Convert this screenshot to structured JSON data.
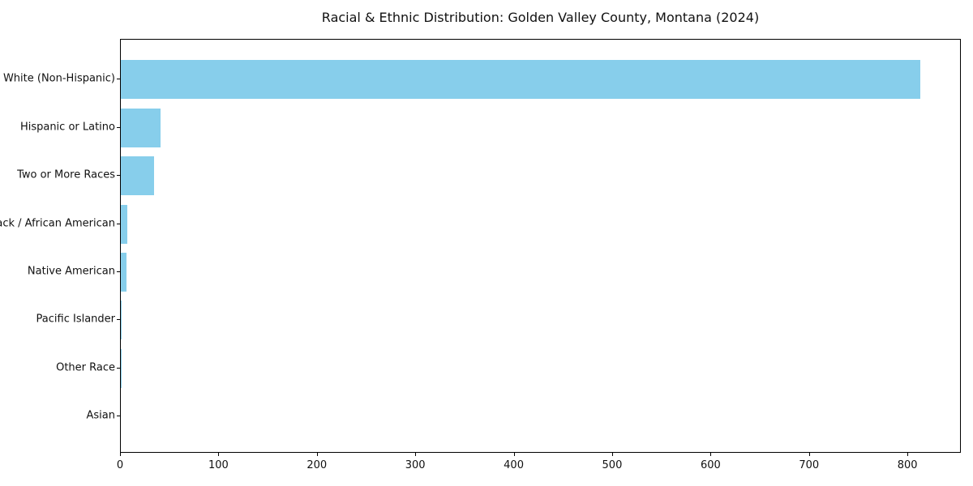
{
  "chart_data": {
    "type": "bar",
    "orientation": "horizontal",
    "title": "Racial & Ethnic Distribution: Golden Valley County, Montana (2024)",
    "categories": [
      "White (Non-Hispanic)",
      "Hispanic or Latino",
      "Two or More Races",
      "Black / African American",
      "Native American",
      "Pacific Islander",
      "Other Race",
      "Asian"
    ],
    "values": [
      812,
      40,
      34,
      7,
      6,
      1,
      1,
      0
    ],
    "xlabel": "",
    "ylabel": "",
    "xticks": [
      0,
      100,
      200,
      300,
      400,
      500,
      600,
      700,
      800
    ],
    "xlim": [
      0,
      852.6
    ],
    "grid": false,
    "legend": "none",
    "bar_color": "#87CEEB",
    "frame_color": "#000000",
    "text_color": "#111111",
    "background_color": "#ffffff"
  }
}
